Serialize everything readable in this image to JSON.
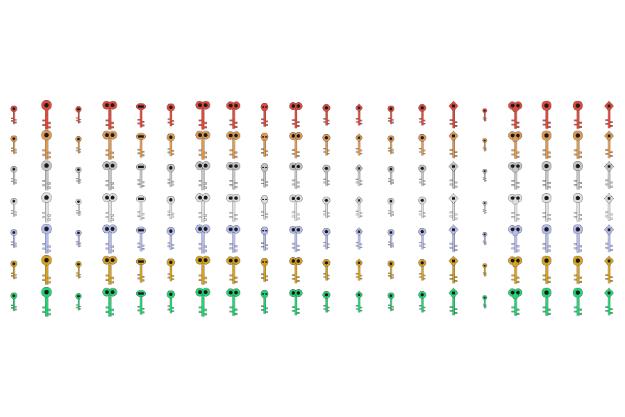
{
  "palette": [
    "#e0483a",
    "#e09a50",
    "#c4c4c4",
    "#dedede",
    "#b4bcee",
    "#d9a21e",
    "#22d474"
  ]
}
